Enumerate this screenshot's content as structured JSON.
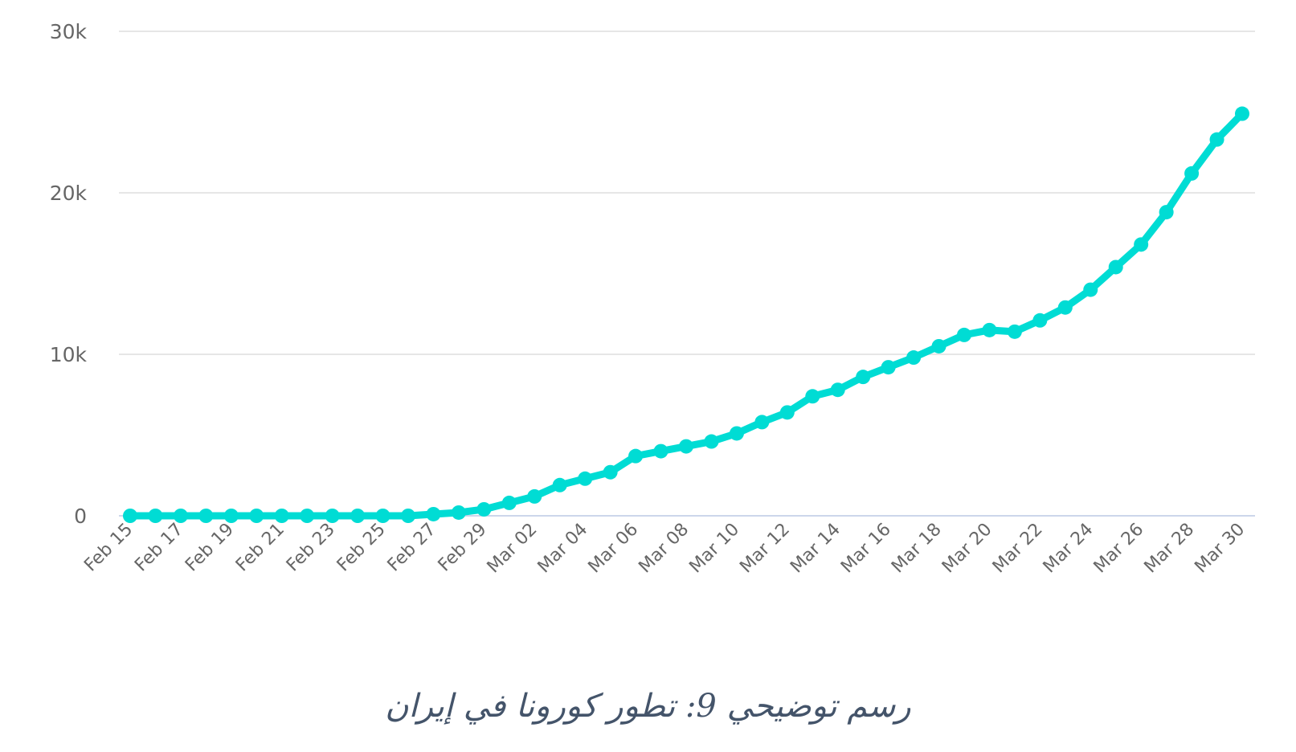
{
  "chart_data": {
    "type": "line",
    "x": [
      "Feb 15",
      "Feb 16",
      "Feb 17",
      "Feb 18",
      "Feb 19",
      "Feb 20",
      "Feb 21",
      "Feb 22",
      "Feb 23",
      "Feb 24",
      "Feb 25",
      "Feb 26",
      "Feb 27",
      "Feb 28",
      "Feb 29",
      "Mar 01",
      "Mar 02",
      "Mar 03",
      "Mar 04",
      "Mar 05",
      "Mar 06",
      "Mar 07",
      "Mar 08",
      "Mar 09",
      "Mar 10",
      "Mar 11",
      "Mar 12",
      "Mar 13",
      "Mar 14",
      "Mar 15",
      "Mar 16",
      "Mar 17",
      "Mar 18",
      "Mar 19",
      "Mar 20",
      "Mar 21",
      "Mar 22",
      "Mar 23",
      "Mar 24",
      "Mar 25",
      "Mar 26",
      "Mar 27",
      "Mar 28",
      "Mar 29",
      "Mar 30"
    ],
    "tick_labels": [
      "Feb 15",
      "Feb 17",
      "Feb 19",
      "Feb 21",
      "Feb 23",
      "Feb 25",
      "Feb 27",
      "Feb 29",
      "Mar 02",
      "Mar 04",
      "Mar 06",
      "Mar 08",
      "Mar 10",
      "Mar 12",
      "Mar 14",
      "Mar 16",
      "Mar 18",
      "Mar 20",
      "Mar 22",
      "Mar 24",
      "Mar 26",
      "Mar 28",
      "Mar 30"
    ],
    "series": [
      {
        "values": [
          0,
          0,
          0,
          0,
          0,
          0,
          0,
          0,
          0,
          0,
          0,
          0,
          100,
          200,
          400,
          800,
          1200,
          1900,
          2300,
          2700,
          3700,
          4000,
          4300,
          4600,
          5100,
          5800,
          6400,
          7400,
          7800,
          8600,
          9200,
          9800,
          10500,
          11200,
          11500,
          11400,
          12100,
          12900,
          14000,
          15400,
          16800,
          18800,
          21200,
          23300,
          24900
        ],
        "color": "#00dcd4"
      }
    ],
    "yticks": [
      "0",
      "10k",
      "20k",
      "30k"
    ],
    "ylim": [
      0,
      30000
    ],
    "grid": true,
    "caption": "رسم توضيحي 9: تطور كورونا في إيران"
  }
}
